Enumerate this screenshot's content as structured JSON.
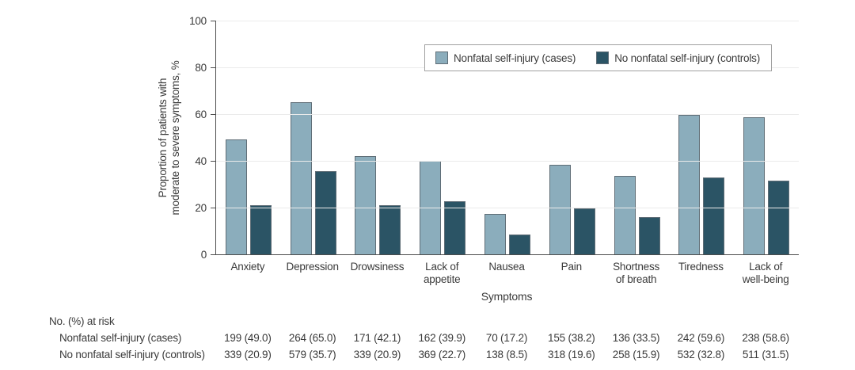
{
  "chart_data": {
    "type": "bar",
    "title": "",
    "xlabel": "Symptoms",
    "ylabel": "Proportion of patients with moderate to severe symptoms, %",
    "ylabel_lines": [
      "Proportion of patients with",
      "moderate to severe symptoms, %"
    ],
    "ylim": [
      0,
      100
    ],
    "yticks": [
      0,
      20,
      40,
      60,
      80,
      100
    ],
    "grid": "horizontal light gray",
    "legend_position": "top-right inside, boxed",
    "categories": [
      "Anxiety",
      "Depression",
      "Drowsiness",
      "Lack of appetite",
      "Nausea",
      "Pain",
      "Shortness of breath",
      "Tiredness",
      "Lack of well-being"
    ],
    "category_label_lines": [
      [
        "Anxiety"
      ],
      [
        "Depression"
      ],
      [
        "Drowsiness"
      ],
      [
        "Lack of",
        "appetite"
      ],
      [
        "Nausea"
      ],
      [
        "Pain"
      ],
      [
        "Shortness",
        "of breath"
      ],
      [
        "Tiredness"
      ],
      [
        "Lack of",
        "well-being"
      ]
    ],
    "series": [
      {
        "name": "Nonfatal self-injury (cases)",
        "color": "#8badbc",
        "values": [
          49.0,
          65.0,
          42.1,
          39.9,
          17.2,
          38.2,
          33.5,
          59.6,
          58.6
        ]
      },
      {
        "name": "No nonfatal self-injury (controls)",
        "color": "#2b5465",
        "values": [
          20.9,
          35.7,
          20.9,
          22.7,
          8.5,
          19.6,
          15.9,
          32.8,
          31.5
        ]
      }
    ]
  },
  "risk_table": {
    "header": "No. (%) at risk",
    "rows": [
      {
        "label": "Nonfatal self-injury (cases)",
        "values": [
          "199 (49.0)",
          "264 (65.0)",
          "171 (42.1)",
          "162 (39.9)",
          "70 (17.2)",
          "155 (38.2)",
          "136 (33.5)",
          "242 (59.6)",
          "238 (58.6)"
        ]
      },
      {
        "label": "No nonfatal self-injury (controls)",
        "values": [
          "339 (20.9)",
          "579 (35.7)",
          "339 (20.9)",
          "369 (22.7)",
          "138 (8.5)",
          "318 (19.6)",
          "258 (15.9)",
          "532 (32.8)",
          "511 (31.5)"
        ]
      }
    ]
  },
  "colors": {
    "cases_fill": "#8badbc",
    "controls_fill": "#2b5465",
    "bar_stroke": "#5f6d76",
    "axis": "#4d4d4d",
    "gridline": "#ebebeb",
    "text": "#3a3a3a",
    "legend_border": "#a0a0a0"
  }
}
